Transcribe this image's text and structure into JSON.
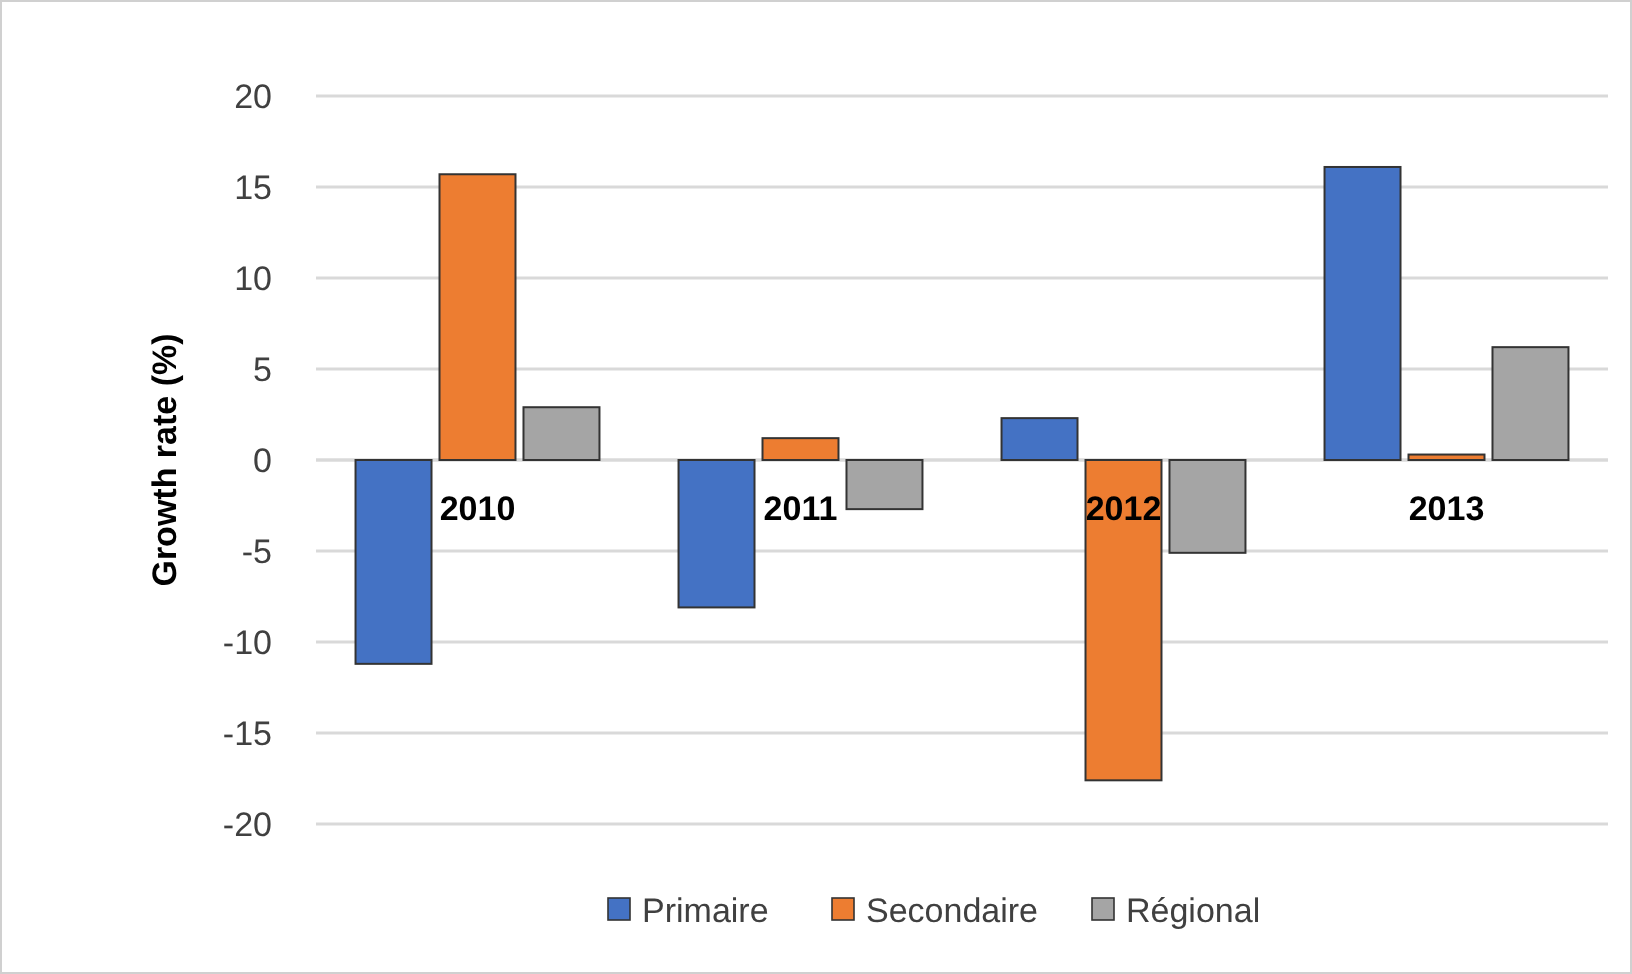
{
  "chart_data": {
    "type": "bar",
    "ylabel": "Growth rate (%)",
    "categories": [
      "2010",
      "2011",
      "2012",
      "2013"
    ],
    "series": [
      {
        "name": "Primaire",
        "color": "#4472c4",
        "values": [
          -11.2,
          -8.1,
          2.3,
          16.1
        ]
      },
      {
        "name": "Secondaire",
        "color": "#ed7d31",
        "values": [
          15.7,
          1.2,
          -17.6,
          0.3
        ]
      },
      {
        "name": "Régional",
        "color": "#a5a5a5",
        "values": [
          2.9,
          -2.7,
          -5.1,
          6.2
        ]
      }
    ],
    "ylim": [
      -20,
      20
    ],
    "yticks": [
      -20,
      -15,
      -10,
      -5,
      0,
      5,
      10,
      15,
      20
    ],
    "grid": "y",
    "legend": "bottom"
  }
}
